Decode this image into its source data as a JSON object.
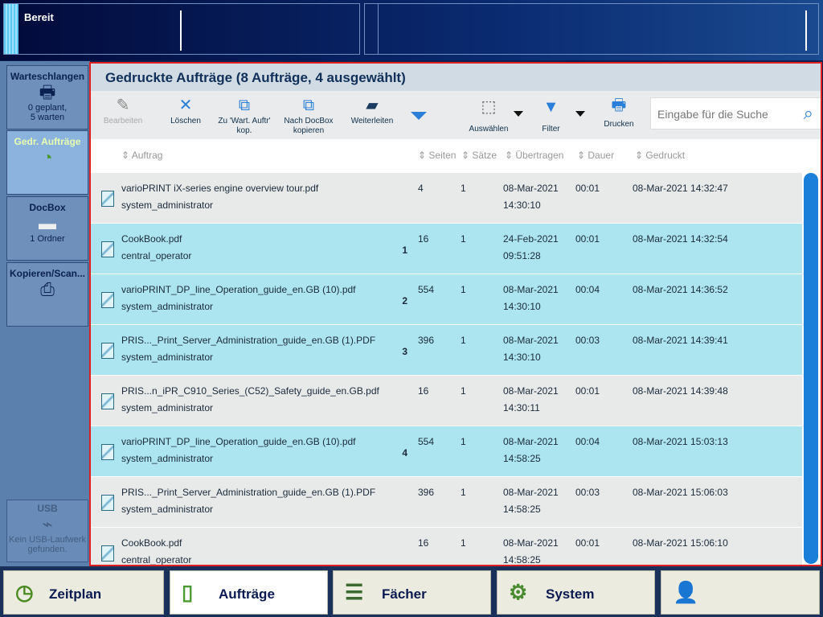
{
  "status": {
    "text": "Bereit"
  },
  "sidebar": [
    {
      "label": "Warteschlangen",
      "icon": "printer-icon",
      "sub": [
        "0 geplant,",
        "5 warten"
      ]
    },
    {
      "label": "Gedr. Aufträge",
      "icon": "printed-jobs-icon",
      "sub": []
    },
    {
      "label": "DocBox",
      "icon": "folder-icon",
      "sub": [
        "1 Ordner"
      ]
    },
    {
      "label": "Kopieren/Scan...",
      "icon": "copy-scan-icon",
      "sub": []
    },
    {
      "label": "USB",
      "icon": "usb-icon",
      "sub": [
        "Kein USB-Laufwerk",
        "gefunden."
      ]
    }
  ],
  "header": {
    "title": "Gedruckte Aufträge (8 Aufträge, 4 ausgewählt)"
  },
  "toolbar": {
    "edit": "Bearbeiten",
    "delete": "Löschen",
    "copy_wait": "Zu 'Wart. Auftr' kop.",
    "copy_docbox": "Nach DocBox kopieren",
    "forward": "Weiterleiten",
    "select": "Auswählen",
    "filter": "Filter",
    "print": "Drucken",
    "search_placeholder": "Eingabe für die Suche"
  },
  "columns": [
    "Auftrag",
    "Seiten",
    "Sätze",
    "Übertragen",
    "Dauer",
    "Gedruckt"
  ],
  "rows": [
    {
      "name": "varioPRINT iX-series engine overview tour.pdf",
      "user": "system_administrator",
      "pages": "4",
      "sets": "1",
      "date": "08-Mar-2021",
      "time": "14:30:10",
      "dur": "00:01",
      "printed": "08-Mar-2021 14:32:47",
      "selected": false,
      "order": ""
    },
    {
      "name": "CookBook.pdf",
      "user": "central_operator",
      "pages": "16",
      "sets": "1",
      "date": "24-Feb-2021",
      "time": "09:51:28",
      "dur": "00:01",
      "printed": "08-Mar-2021 14:32:54",
      "selected": true,
      "order": "1"
    },
    {
      "name": "varioPRINT_DP_line_Operation_guide_en.GB (10).pdf",
      "user": "system_administrator",
      "pages": "554",
      "sets": "1",
      "date": "08-Mar-2021",
      "time": "14:30:10",
      "dur": "00:04",
      "printed": "08-Mar-2021 14:36:52",
      "selected": true,
      "order": "2"
    },
    {
      "name": "PRIS..._Print_Server_Administration_guide_en.GB (1).PDF",
      "user": "system_administrator",
      "pages": "396",
      "sets": "1",
      "date": "08-Mar-2021",
      "time": "14:30:10",
      "dur": "00:03",
      "printed": "08-Mar-2021 14:39:41",
      "selected": true,
      "order": "3"
    },
    {
      "name": "PRIS...n_iPR_C910_Series_(C52)_Safety_guide_en.GB.pdf",
      "user": "system_administrator",
      "pages": "16",
      "sets": "1",
      "date": "08-Mar-2021",
      "time": "14:30:11",
      "dur": "00:01",
      "printed": "08-Mar-2021 14:39:48",
      "selected": false,
      "order": ""
    },
    {
      "name": "varioPRINT_DP_line_Operation_guide_en.GB (10).pdf",
      "user": "system_administrator",
      "pages": "554",
      "sets": "1",
      "date": "08-Mar-2021",
      "time": "14:58:25",
      "dur": "00:04",
      "printed": "08-Mar-2021 15:03:13",
      "selected": true,
      "order": "4"
    },
    {
      "name": "PRIS..._Print_Server_Administration_guide_en.GB (1).PDF",
      "user": "system_administrator",
      "pages": "396",
      "sets": "1",
      "date": "08-Mar-2021",
      "time": "14:58:25",
      "dur": "00:03",
      "printed": "08-Mar-2021 15:06:03",
      "selected": false,
      "order": ""
    },
    {
      "name": "CookBook.pdf",
      "user": "central_operator",
      "pages": "16",
      "sets": "1",
      "date": "08-Mar-2021",
      "time": "14:58:25",
      "dur": "00:01",
      "printed": "08-Mar-2021 15:06:10",
      "selected": false,
      "order": ""
    }
  ],
  "nav": [
    {
      "label": "Zeitplan",
      "icon": "clock-icon"
    },
    {
      "label": "Aufträge",
      "icon": "jobs-icon",
      "active": true
    },
    {
      "label": "Fächer",
      "icon": "trays-icon"
    },
    {
      "label": "System",
      "icon": "gears-icon"
    },
    {
      "label": "",
      "icon": "user-key-icon"
    }
  ]
}
